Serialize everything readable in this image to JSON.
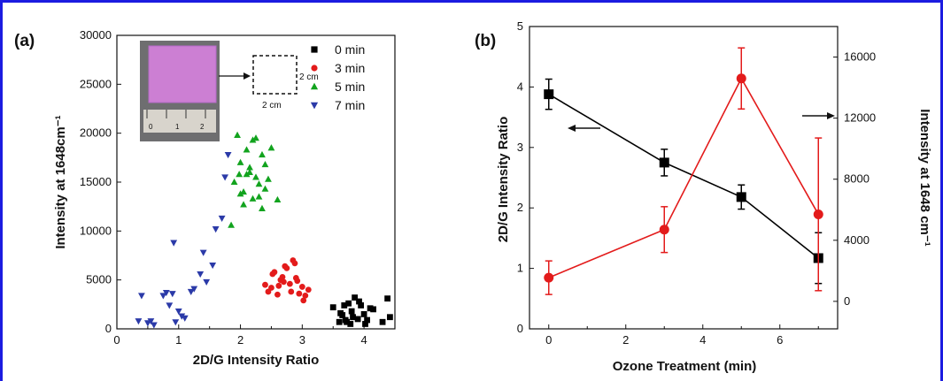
{
  "chart_data": [
    {
      "type": "scatter",
      "panel_label": "(a)",
      "xlabel": "2D/G Intensity Ratio",
      "ylabel": "Intensity at 1648cm⁻¹",
      "xlim": [
        0,
        4.5
      ],
      "ylim": [
        0,
        30000
      ],
      "xticks": [
        "0",
        "1",
        "2",
        "3",
        "4"
      ],
      "yticks": [
        "0",
        "5000",
        "10000",
        "15000",
        "20000",
        "25000",
        "30000"
      ],
      "legend_position": "top-right",
      "inset": {
        "ruler_marks": [
          "0",
          "1",
          "2"
        ],
        "box_label_right": "2 cm",
        "box_label_bottom": "2 cm"
      },
      "series": [
        {
          "name": "0 min",
          "marker": "square",
          "color": "#000000",
          "x": [
            3.5,
            3.6,
            3.65,
            3.7,
            3.75,
            3.8,
            3.85,
            3.9,
            3.95,
            4.0,
            4.05,
            4.1,
            3.62,
            3.72,
            3.82,
            3.92,
            4.02,
            4.15,
            4.3,
            4.42,
            3.78,
            3.68,
            4.38
          ],
          "y": [
            2200,
            700,
            1400,
            900,
            2600,
            1800,
            3200,
            1000,
            2400,
            1500,
            900,
            2100,
            1600,
            700,
            1200,
            2800,
            500,
            2000,
            700,
            1200,
            500,
            2400,
            3100
          ]
        },
        {
          "name": "3 min",
          "marker": "circle",
          "color": "#e31b1b",
          "x": [
            2.4,
            2.45,
            2.5,
            2.55,
            2.6,
            2.65,
            2.7,
            2.75,
            2.8,
            2.85,
            2.9,
            2.95,
            3.0,
            3.05,
            3.1,
            2.52,
            2.62,
            2.72,
            2.82,
            2.92,
            3.02,
            2.68,
            2.88
          ],
          "y": [
            4500,
            3800,
            4200,
            5800,
            3500,
            5000,
            4800,
            6200,
            4600,
            7000,
            5200,
            3600,
            4300,
            3400,
            4000,
            5600,
            4400,
            6400,
            3800,
            4900,
            2900,
            5300,
            6700
          ]
        },
        {
          "name": "5 min",
          "marker": "triangle-up",
          "color": "#12a31e",
          "x": [
            1.9,
            1.95,
            2.0,
            2.05,
            2.1,
            2.15,
            2.2,
            2.25,
            2.3,
            2.35,
            2.4,
            2.5,
            2.6,
            1.85,
            2.0,
            2.1,
            2.2,
            2.3,
            2.15,
            2.25,
            2.05,
            2.35,
            2.45,
            1.98,
            2.4
          ],
          "y": [
            15000,
            19800,
            17000,
            14000,
            18300,
            16000,
            19300,
            15500,
            13500,
            17800,
            16800,
            18500,
            13200,
            10600,
            13800,
            15800,
            13300,
            14800,
            16500,
            19500,
            12700,
            12300,
            15300,
            15800,
            14300
          ]
        },
        {
          "name": "7 min",
          "marker": "triangle-down",
          "color": "#2b3aa8",
          "x": [
            0.35,
            0.4,
            0.5,
            0.55,
            0.6,
            0.75,
            0.8,
            0.85,
            0.9,
            0.95,
            1.0,
            1.05,
            1.1,
            1.2,
            1.25,
            1.35,
            1.4,
            1.45,
            1.55,
            1.6,
            1.7,
            1.75,
            1.8,
            0.92
          ],
          "y": [
            800,
            3400,
            600,
            800,
            400,
            3400,
            3700,
            2400,
            3600,
            700,
            1800,
            1300,
            1100,
            3800,
            4100,
            5600,
            7800,
            4800,
            6500,
            10200,
            11300,
            15500,
            17800,
            8800
          ]
        }
      ]
    },
    {
      "type": "line",
      "panel_label": "(b)",
      "xlabel": "Ozone Treatment (min)",
      "ylabel": "2D/G Intensity Ratio",
      "y2label": "Intensity at 1648 cm⁻¹",
      "xlim": [
        -0.5,
        7.5
      ],
      "ylim": [
        0,
        5
      ],
      "y2lim": [
        -1800,
        18000
      ],
      "xticks": [
        "0",
        "2",
        "4",
        "6"
      ],
      "yticks": [
        "0",
        "1",
        "2",
        "3",
        "4",
        "5"
      ],
      "y2ticks": [
        "0",
        "4000",
        "8000",
        "12000",
        "16000"
      ],
      "x": [
        0,
        3,
        5,
        7
      ],
      "series": [
        {
          "name": "",
          "axis": "left",
          "marker": "square",
          "color": "#000000",
          "values": [
            3.88,
            2.75,
            2.18,
            1.17
          ],
          "errors": [
            0.25,
            0.22,
            0.2,
            0.42
          ]
        },
        {
          "name": "",
          "axis": "right",
          "marker": "circle",
          "color": "#e31b1b",
          "values": [
            1550,
            4700,
            14600,
            5700
          ],
          "errors": [
            1100,
            1500,
            2000,
            5000
          ]
        }
      ]
    }
  ]
}
